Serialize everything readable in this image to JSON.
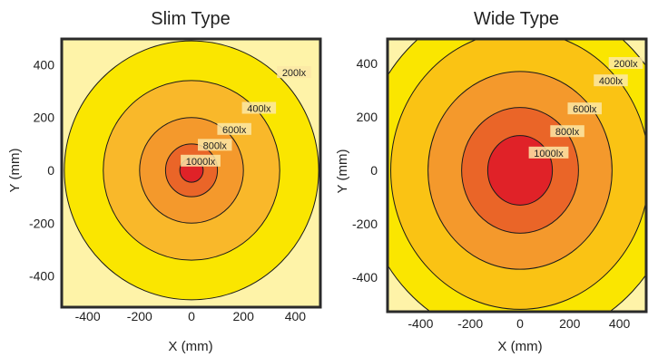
{
  "chart_data": [
    {
      "type": "contour",
      "title": "Slim Type",
      "xlabel": "X (mm)",
      "ylabel": "Y (mm)",
      "xlim": [
        -500,
        500
      ],
      "ylim": [
        -500,
        500
      ],
      "xticks": [
        "-400",
        "-200",
        "0",
        "200",
        "400"
      ],
      "yticks": [
        "400",
        "200",
        "0",
        "-200",
        "-400"
      ],
      "background_color": "#fef3a8",
      "contours": [
        {
          "label": "200lx",
          "radius_mm": 490,
          "color": "#fae600"
        },
        {
          "label": "400lx",
          "radius_mm": 340,
          "color": "#f9b82a"
        },
        {
          "label": "600lx",
          "radius_mm": 200,
          "color": "#f4992c"
        },
        {
          "label": "800lx",
          "radius_mm": 100,
          "color": "#ea6528"
        },
        {
          "label": "1000lx",
          "radius_mm": 45,
          "color": "#e02228"
        }
      ],
      "label_positions": [
        {
          "label": "200lx",
          "x": 395,
          "y": 370
        },
        {
          "label": "400lx",
          "x": 260,
          "y": 235
        },
        {
          "label": "600lx",
          "x": 165,
          "y": 155
        },
        {
          "label": "800lx",
          "x": 90,
          "y": 95
        },
        {
          "label": "1000lx",
          "x": 35,
          "y": 35
        }
      ]
    },
    {
      "type": "contour",
      "title": "Wide Type",
      "xlabel": "X (mm)",
      "ylabel": "Y (mm)",
      "xlim": [
        -510,
        510
      ],
      "ylim": [
        -510,
        510
      ],
      "xticks": [
        "-400",
        "-200",
        "0",
        "200",
        "400"
      ],
      "yticks": [
        "400",
        "200",
        "0",
        "-200",
        "-400"
      ],
      "background_color": "#fef3a8",
      "contours": [
        {
          "label": "200lx",
          "radius_mm": 640,
          "color": "#fae600"
        },
        {
          "label": "400lx",
          "radius_mm": 520,
          "color": "#fac314"
        },
        {
          "label": "600lx",
          "radius_mm": 370,
          "color": "#f4992c"
        },
        {
          "label": "800lx",
          "radius_mm": 235,
          "color": "#ea6528"
        },
        {
          "label": "1000lx",
          "radius_mm": 130,
          "color": "#e02228"
        }
      ],
      "label_positions": [
        {
          "label": "200lx",
          "x": 425,
          "y": 400
        },
        {
          "label": "400lx",
          "x": 365,
          "y": 335
        },
        {
          "label": "600lx",
          "x": 260,
          "y": 230
        },
        {
          "label": "800lx",
          "x": 190,
          "y": 145
        },
        {
          "label": "1000lx",
          "x": 115,
          "y": 65
        }
      ]
    }
  ]
}
